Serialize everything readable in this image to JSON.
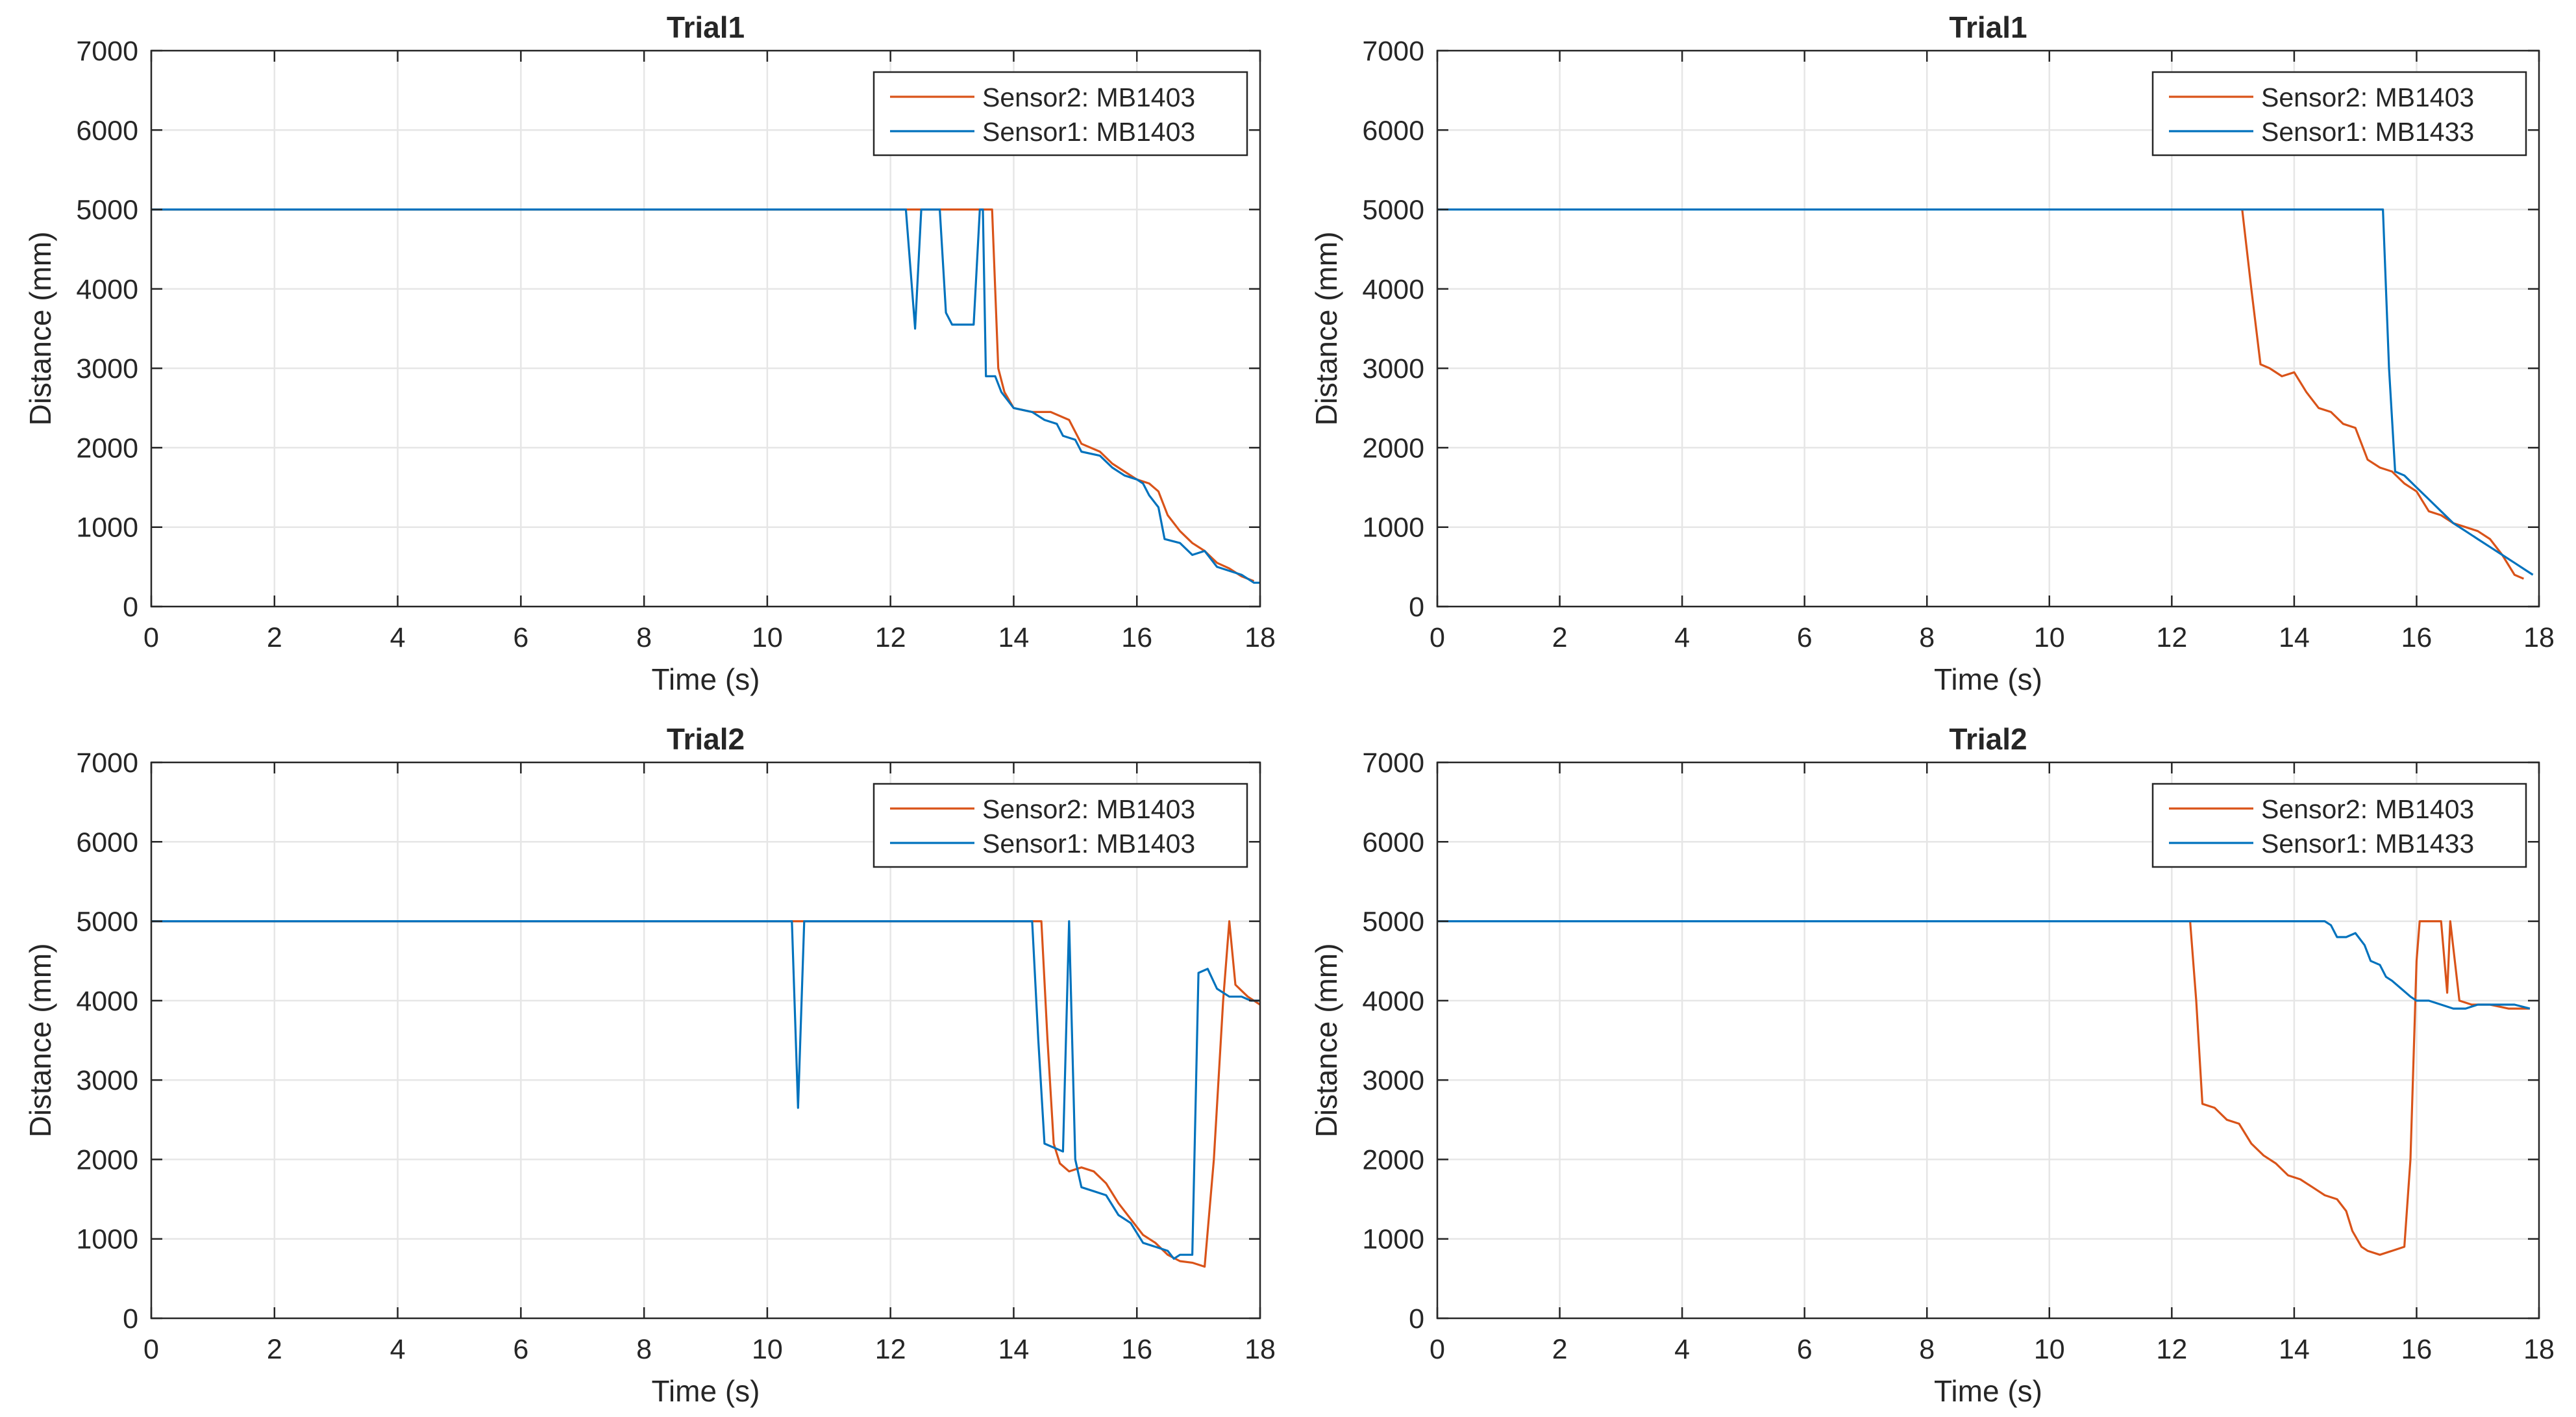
{
  "chart_data": [
    {
      "type": "line",
      "title": "Trial1",
      "xlabel": "Time (s)",
      "ylabel": "Distance (mm)",
      "xlim": [
        0,
        18
      ],
      "ylim": [
        0,
        7000
      ],
      "xticks": [
        0,
        2,
        4,
        6,
        8,
        10,
        12,
        14,
        16,
        18
      ],
      "yticks": [
        0,
        1000,
        2000,
        3000,
        4000,
        5000,
        6000,
        7000
      ],
      "grid": true,
      "legend_position": "top-right",
      "series": [
        {
          "name": "Sensor2: MB1403",
          "color": "#D95319",
          "points": [
            [
              0,
              5000
            ],
            [
              13.45,
              5000
            ],
            [
              13.55,
              5000
            ],
            [
              13.65,
              5000
            ],
            [
              13.75,
              3000
            ],
            [
              13.85,
              2700
            ],
            [
              14.0,
              2500
            ],
            [
              14.3,
              2450
            ],
            [
              14.6,
              2450
            ],
            [
              14.9,
              2350
            ],
            [
              15.1,
              2050
            ],
            [
              15.4,
              1950
            ],
            [
              15.6,
              1800
            ],
            [
              15.8,
              1700
            ],
            [
              16.0,
              1600
            ],
            [
              16.2,
              1550
            ],
            [
              16.35,
              1450
            ],
            [
              16.5,
              1150
            ],
            [
              16.7,
              950
            ],
            [
              16.9,
              800
            ],
            [
              17.1,
              700
            ],
            [
              17.3,
              550
            ],
            [
              17.5,
              480
            ],
            [
              17.7,
              380
            ],
            [
              17.9,
              320
            ]
          ]
        },
        {
          "name": "Sensor1: MB1403",
          "color": "#0072BD",
          "points": [
            [
              0,
              5000
            ],
            [
              12.25,
              5000
            ],
            [
              12.4,
              3500
            ],
            [
              12.5,
              5000
            ],
            [
              12.8,
              5000
            ],
            [
              12.9,
              3700
            ],
            [
              13.0,
              3550
            ],
            [
              13.35,
              3550
            ],
            [
              13.45,
              5000
            ],
            [
              13.5,
              5000
            ],
            [
              13.55,
              2900
            ],
            [
              13.7,
              2900
            ],
            [
              13.8,
              2700
            ],
            [
              14.0,
              2500
            ],
            [
              14.3,
              2450
            ],
            [
              14.5,
              2350
            ],
            [
              14.7,
              2300
            ],
            [
              14.8,
              2150
            ],
            [
              15.0,
              2100
            ],
            [
              15.1,
              1950
            ],
            [
              15.4,
              1900
            ],
            [
              15.6,
              1750
            ],
            [
              15.8,
              1650
            ],
            [
              16.0,
              1600
            ],
            [
              16.1,
              1550
            ],
            [
              16.2,
              1400
            ],
            [
              16.35,
              1250
            ],
            [
              16.45,
              850
            ],
            [
              16.7,
              800
            ],
            [
              16.9,
              650
            ],
            [
              17.1,
              700
            ],
            [
              17.3,
              500
            ],
            [
              17.5,
              450
            ],
            [
              17.7,
              400
            ],
            [
              17.9,
              300
            ],
            [
              18.0,
              300
            ]
          ]
        }
      ]
    },
    {
      "type": "line",
      "title": "Trial1",
      "xlabel": "Time (s)",
      "ylabel": "Distance (mm)",
      "xlim": [
        0,
        18
      ],
      "ylim": [
        0,
        7000
      ],
      "xticks": [
        0,
        2,
        4,
        6,
        8,
        10,
        12,
        14,
        16,
        18
      ],
      "yticks": [
        0,
        1000,
        2000,
        3000,
        4000,
        5000,
        6000,
        7000
      ],
      "grid": true,
      "legend_position": "top-right",
      "series": [
        {
          "name": "Sensor2: MB1403",
          "color": "#D95319",
          "points": [
            [
              13.15,
              5000
            ],
            [
              13.3,
              4000
            ],
            [
              13.45,
              3050
            ],
            [
              13.6,
              3000
            ],
            [
              13.8,
              2900
            ],
            [
              14.0,
              2950
            ],
            [
              14.2,
              2700
            ],
            [
              14.4,
              2500
            ],
            [
              14.6,
              2450
            ],
            [
              14.8,
              2300
            ],
            [
              15.0,
              2250
            ],
            [
              15.1,
              2050
            ],
            [
              15.2,
              1850
            ],
            [
              15.4,
              1750
            ],
            [
              15.6,
              1700
            ],
            [
              15.8,
              1550
            ],
            [
              16.0,
              1450
            ],
            [
              16.2,
              1200
            ],
            [
              16.4,
              1150
            ],
            [
              16.6,
              1050
            ],
            [
              16.8,
              1000
            ],
            [
              17.0,
              950
            ],
            [
              17.2,
              850
            ],
            [
              17.4,
              650
            ],
            [
              17.6,
              400
            ],
            [
              17.75,
              350
            ]
          ]
        },
        {
          "name": "Sensor1: MB1433",
          "color": "#0072BD",
          "points": [
            [
              0,
              5000
            ],
            [
              15.45,
              5000
            ],
            [
              15.55,
              3000
            ],
            [
              15.65,
              1700
            ],
            [
              15.8,
              1650
            ],
            [
              16.0,
              1500
            ],
            [
              16.2,
              1350
            ],
            [
              16.4,
              1200
            ],
            [
              16.6,
              1050
            ],
            [
              16.8,
              950
            ],
            [
              17.0,
              850
            ],
            [
              17.2,
              750
            ],
            [
              17.4,
              650
            ],
            [
              17.6,
              550
            ],
            [
              17.8,
              450
            ],
            [
              17.9,
              400
            ]
          ]
        }
      ]
    },
    {
      "type": "line",
      "title": "Trial2",
      "xlabel": "Time (s)",
      "ylabel": "Distance (mm)",
      "xlim": [
        0,
        18
      ],
      "ylim": [
        0,
        7000
      ],
      "xticks": [
        0,
        2,
        4,
        6,
        8,
        10,
        12,
        14,
        16,
        18
      ],
      "yticks": [
        0,
        1000,
        2000,
        3000,
        4000,
        5000,
        6000,
        7000
      ],
      "grid": true,
      "legend_position": "top-right",
      "series": [
        {
          "name": "Sensor2: MB1403",
          "color": "#D95319",
          "points": [
            [
              0,
              5000
            ],
            [
              14.45,
              5000
            ],
            [
              14.55,
              3500
            ],
            [
              14.65,
              2200
            ],
            [
              14.75,
              1950
            ],
            [
              14.9,
              1850
            ],
            [
              15.1,
              1900
            ],
            [
              15.3,
              1850
            ],
            [
              15.5,
              1700
            ],
            [
              15.7,
              1450
            ],
            [
              15.9,
              1250
            ],
            [
              16.1,
              1050
            ],
            [
              16.3,
              950
            ],
            [
              16.5,
              800
            ],
            [
              16.7,
              720
            ],
            [
              16.9,
              700
            ],
            [
              17.1,
              650
            ],
            [
              17.25,
              2000
            ],
            [
              17.4,
              4000
            ],
            [
              17.5,
              5000
            ],
            [
              17.6,
              4200
            ],
            [
              17.8,
              4050
            ],
            [
              18.0,
              3950
            ]
          ]
        },
        {
          "name": "Sensor1: MB1403",
          "color": "#0072BD",
          "points": [
            [
              0,
              5000
            ],
            [
              10.4,
              5000
            ],
            [
              10.5,
              2650
            ],
            [
              10.6,
              5000
            ],
            [
              14.3,
              5000
            ],
            [
              14.4,
              3500
            ],
            [
              14.5,
              2200
            ],
            [
              14.8,
              2100
            ],
            [
              14.9,
              5000
            ],
            [
              15.0,
              2000
            ],
            [
              15.1,
              1650
            ],
            [
              15.3,
              1600
            ],
            [
              15.5,
              1550
            ],
            [
              15.7,
              1300
            ],
            [
              15.9,
              1200
            ],
            [
              16.1,
              950
            ],
            [
              16.3,
              900
            ],
            [
              16.5,
              850
            ],
            [
              16.6,
              750
            ],
            [
              16.7,
              800
            ],
            [
              16.9,
              800
            ],
            [
              17.0,
              4350
            ],
            [
              17.15,
              4400
            ],
            [
              17.3,
              4150
            ],
            [
              17.5,
              4050
            ],
            [
              17.7,
              4050
            ],
            [
              17.85,
              4000
            ],
            [
              18.0,
              4000
            ]
          ]
        }
      ]
    },
    {
      "type": "line",
      "title": "Trial2",
      "xlabel": "Time (s)",
      "ylabel": "Distance (mm)",
      "xlim": [
        0,
        18
      ],
      "ylim": [
        0,
        7000
      ],
      "xticks": [
        0,
        2,
        4,
        6,
        8,
        10,
        12,
        14,
        16,
        18
      ],
      "yticks": [
        0,
        1000,
        2000,
        3000,
        4000,
        5000,
        6000,
        7000
      ],
      "grid": true,
      "legend_position": "top-right",
      "series": [
        {
          "name": "Sensor2: MB1403",
          "color": "#D95319",
          "points": [
            [
              12.3,
              5000
            ],
            [
              12.4,
              4000
            ],
            [
              12.5,
              2700
            ],
            [
              12.7,
              2650
            ],
            [
              12.9,
              2500
            ],
            [
              13.1,
              2450
            ],
            [
              13.3,
              2200
            ],
            [
              13.5,
              2050
            ],
            [
              13.7,
              1950
            ],
            [
              13.9,
              1800
            ],
            [
              14.1,
              1750
            ],
            [
              14.3,
              1650
            ],
            [
              14.5,
              1550
            ],
            [
              14.7,
              1500
            ],
            [
              14.85,
              1350
            ],
            [
              14.95,
              1100
            ],
            [
              15.1,
              900
            ],
            [
              15.2,
              850
            ],
            [
              15.4,
              800
            ],
            [
              15.6,
              850
            ],
            [
              15.8,
              900
            ],
            [
              15.9,
              2000
            ],
            [
              16.0,
              4500
            ],
            [
              16.05,
              5000
            ],
            [
              16.4,
              5000
            ],
            [
              16.5,
              4100
            ],
            [
              16.55,
              5000
            ],
            [
              16.7,
              4000
            ],
            [
              16.9,
              3950
            ],
            [
              17.2,
              3950
            ],
            [
              17.5,
              3900
            ],
            [
              17.85,
              3900
            ]
          ]
        },
        {
          "name": "Sensor1: MB1433",
          "color": "#0072BD",
          "points": [
            [
              0,
              5000
            ],
            [
              14.5,
              5000
            ],
            [
              14.6,
              4950
            ],
            [
              14.7,
              4800
            ],
            [
              14.85,
              4800
            ],
            [
              15.0,
              4850
            ],
            [
              15.15,
              4700
            ],
            [
              15.25,
              4500
            ],
            [
              15.4,
              4450
            ],
            [
              15.5,
              4300
            ],
            [
              15.6,
              4250
            ],
            [
              15.75,
              4150
            ],
            [
              15.9,
              4050
            ],
            [
              16.0,
              4000
            ],
            [
              16.2,
              4000
            ],
            [
              16.4,
              3950
            ],
            [
              16.6,
              3900
            ],
            [
              16.8,
              3900
            ],
            [
              17.0,
              3950
            ],
            [
              17.3,
              3950
            ],
            [
              17.6,
              3950
            ],
            [
              17.85,
              3900
            ]
          ]
        }
      ]
    }
  ]
}
